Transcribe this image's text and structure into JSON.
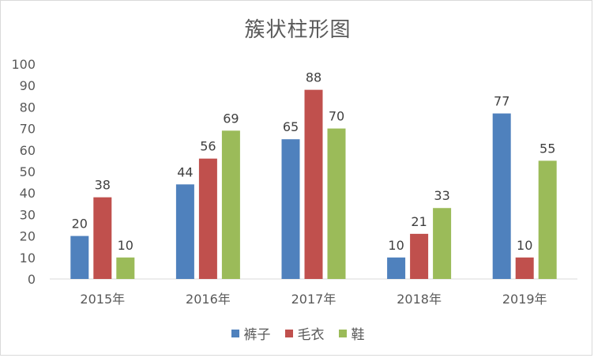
{
  "chart_data": {
    "type": "bar",
    "title": "簇状柱形图",
    "categories": [
      "2015年",
      "2016年",
      "2017年",
      "2018年",
      "2019年"
    ],
    "series": [
      {
        "name": "裤子",
        "color": "#4f81bd",
        "values": [
          20,
          44,
          65,
          10,
          77
        ]
      },
      {
        "name": "毛衣",
        "color": "#c0504d",
        "values": [
          38,
          56,
          88,
          21,
          10
        ]
      },
      {
        "name": "鞋",
        "color": "#9bbb59",
        "values": [
          10,
          69,
          70,
          33,
          55
        ]
      }
    ],
    "ylim": [
      0,
      100
    ],
    "yticks": [
      0,
      10,
      20,
      30,
      40,
      50,
      60,
      70,
      80,
      90,
      100
    ],
    "grid": false,
    "legend_position": "bottom",
    "data_labels": true
  }
}
